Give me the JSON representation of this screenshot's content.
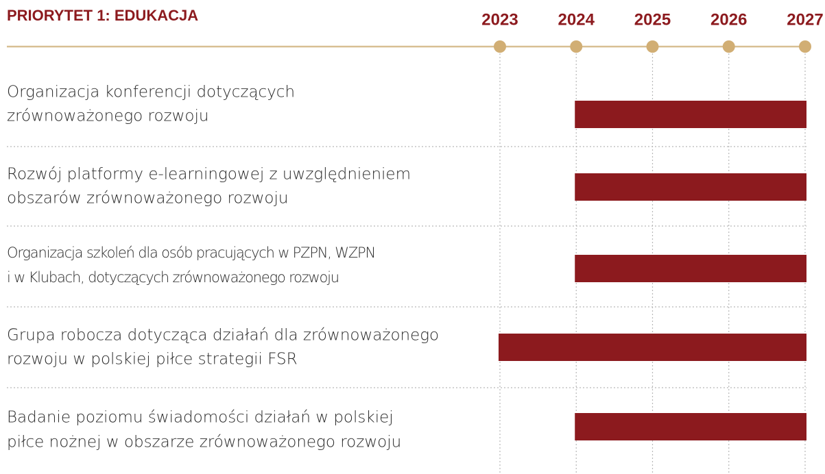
{
  "chart_data": {
    "type": "gantt",
    "title": "PRIORYTET 1: EDUKACJA",
    "categories": [
      [
        "Organizacja konferencji dotyczących",
        "zrównoważonego rozwoju"
      ],
      [
        "Rozwój platformy e-learningowej z uwzględnieniem",
        "obszarów zrównoważonego rozwoju"
      ],
      [
        "Organizacja szkoleń dla osób pracujących w PZPN, WZPN",
        "i w Klubach, dotyczących zrównoważonego rozwoju"
      ],
      [
        "Grupa robocza dotycząca działań dla zrównoważonego",
        "rozwoju w polskiej piłce  strategii FSR"
      ],
      [
        "Badanie poziomu świadomości działań w polskiej",
        "piłce nożnej w obszarze zrównoważonego rozwoju"
      ]
    ],
    "start": [
      2024,
      2024,
      2024,
      2023,
      2024
    ],
    "end": [
      2027,
      2027,
      2027,
      2027,
      2027
    ],
    "color": "#8c1a1e",
    "xlim": [
      2023,
      2027
    ],
    "xticks": [
      2023,
      2024,
      2025,
      2026,
      2027
    ],
    "grid": true
  }
}
